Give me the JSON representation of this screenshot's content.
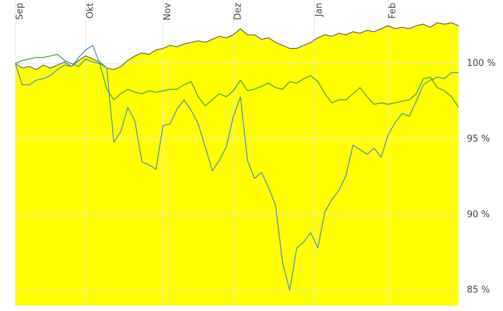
{
  "chart_data": {
    "type": "line",
    "x": [
      0,
      1,
      2,
      3,
      4,
      5,
      6,
      7,
      8,
      9,
      10,
      11,
      12,
      13,
      14,
      15,
      16,
      17,
      18,
      19,
      20,
      21,
      22,
      23,
      24,
      25,
      26,
      27,
      28,
      29,
      30,
      31,
      32,
      33,
      34,
      35,
      36,
      37,
      38,
      39,
      40,
      41,
      42,
      43,
      44,
      45,
      46,
      47,
      48,
      49,
      50,
      51,
      52,
      53,
      54,
      55,
      56,
      57,
      58,
      59,
      60,
      61,
      62,
      63
    ],
    "xlim": [
      0,
      63
    ],
    "xticks": [
      {
        "value": 0,
        "label": "Sep"
      },
      {
        "value": 10,
        "label": "Okt"
      },
      {
        "value": 21,
        "label": "Nov"
      },
      {
        "value": 31,
        "label": "Dez"
      },
      {
        "value": 42.5,
        "label": "Jan"
      },
      {
        "value": 53,
        "label": "Feb"
      }
    ],
    "ylim": [
      84,
      104.2
    ],
    "yticks": [
      {
        "value": 85,
        "label": "85 %"
      },
      {
        "value": 90,
        "label": "90 %"
      },
      {
        "value": 95,
        "label": "95 %"
      },
      {
        "value": 100,
        "label": "100 %"
      }
    ],
    "grid": true,
    "series": [
      {
        "color": "#666666",
        "fill": "#ffff00",
        "values": [
          100,
          99.7,
          99.8,
          99.6,
          99.9,
          99.7,
          99.9,
          100.1,
          99.8,
          100.2,
          100.5,
          100.3,
          100.1,
          99.7,
          99.6,
          99.8,
          100.2,
          100.5,
          100.7,
          100.6,
          100.9,
          101.0,
          101.2,
          101.1,
          101.3,
          101.4,
          101.5,
          101.4,
          101.6,
          101.8,
          101.7,
          101.9,
          102.3,
          101.9,
          101.9,
          101.6,
          101.7,
          101.4,
          101.2,
          101.0,
          101.0,
          101.2,
          101.4,
          101.7,
          101.9,
          101.8,
          102.0,
          101.9,
          102.1,
          102.0,
          102.2,
          102.1,
          102.3,
          102.5,
          102.3,
          102.4,
          102.3,
          102.5,
          102.6,
          102.4,
          102.7,
          102.6,
          102.7,
          102.5
        ]
      },
      {
        "color": "#4a8fc9",
        "values": [
          100,
          98.6,
          98.6,
          98.9,
          99.0,
          99.2,
          99.6,
          99.9,
          99.8,
          100.4,
          100.9,
          101.2,
          100.0,
          99.7,
          94.8,
          95.5,
          97.1,
          96.2,
          93.5,
          93.3,
          93.0,
          95.9,
          96.0,
          97.0,
          97.6,
          96.9,
          96.0,
          94.5,
          92.9,
          93.6,
          94.5,
          96.5,
          97.8,
          93.6,
          92.4,
          92.8,
          91.8,
          90.6,
          86.8,
          85.0,
          87.8,
          88.2,
          88.8,
          87.8,
          90.2,
          91.0,
          91.6,
          92.6,
          94.6,
          94.3,
          94.0,
          94.4,
          93.8,
          95.3,
          96.1,
          96.7,
          96.5,
          97.5,
          98.6,
          98.9,
          99.1,
          99.0,
          99.4,
          99.4
        ]
      },
      {
        "color": "#3ea23e",
        "values": [
          100,
          100.2,
          100.3,
          100.4,
          100.4,
          100.5,
          100.6,
          100.2,
          100,
          99.8,
          100.3,
          100.1,
          100,
          98.3,
          97.6,
          98.0,
          98.3,
          98.1,
          98.0,
          98.2,
          98.1,
          98.2,
          98.3,
          98.3,
          98.6,
          98.8,
          97.8,
          97.2,
          97.6,
          98.0,
          97.8,
          98.2,
          98.9,
          98.2,
          98.3,
          98.5,
          98.7,
          98.4,
          98.3,
          98.8,
          98.7,
          99.0,
          99.2,
          98.8,
          98.0,
          97.4,
          97.6,
          97.6,
          98.0,
          98.4,
          97.8,
          97.3,
          97.4,
          97.3,
          97.4,
          97.5,
          97.6,
          98.0,
          99.0,
          99.1,
          98.4,
          98.2,
          97.8,
          97.1
        ]
      }
    ]
  }
}
